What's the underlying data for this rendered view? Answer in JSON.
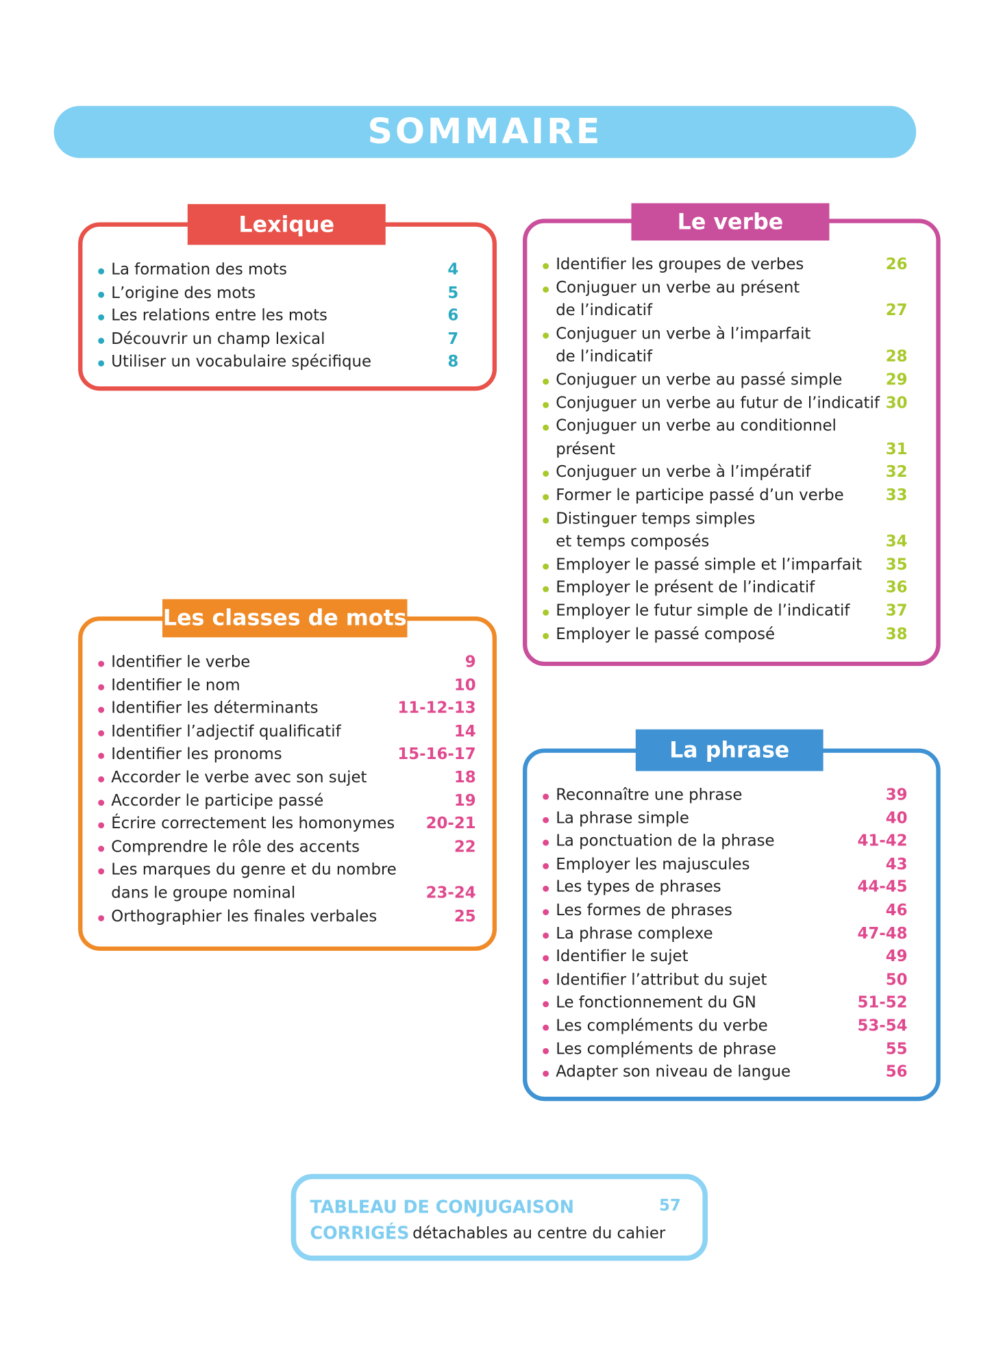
{
  "title": "SOMMAIRE",
  "sections": [
    {
      "title": "Lexique",
      "items": [
        {
          "lines": [
            "La formation des mots"
          ],
          "page": "4"
        },
        {
          "lines": [
            "L’origine des mots"
          ],
          "page": "5"
        },
        {
          "lines": [
            "Les relations entre les mots"
          ],
          "page": "6"
        },
        {
          "lines": [
            "Découvrir un champ lexical"
          ],
          "page": "7"
        },
        {
          "lines": [
            "Utiliser un vocabulaire spécifique"
          ],
          "page": "8"
        }
      ]
    },
    {
      "title": "Le verbe",
      "items": [
        {
          "lines": [
            "Identifier les groupes de verbes"
          ],
          "page": "26"
        },
        {
          "lines": [
            "Conjuguer un verbe au présent",
            "de l’indicatif"
          ],
          "page": "27"
        },
        {
          "lines": [
            "Conjuguer un verbe à l’imparfait",
            "de l’indicatif"
          ],
          "page": "28"
        },
        {
          "lines": [
            "Conjuguer un verbe au passé simple"
          ],
          "page": "29"
        },
        {
          "lines": [
            "Conjuguer un verbe au futur de l’indicatif"
          ],
          "page": "30"
        },
        {
          "lines": [
            "Conjuguer un verbe au conditionnel",
            "présent"
          ],
          "page": "31"
        },
        {
          "lines": [
            "Conjuguer un verbe à l’impératif"
          ],
          "page": "32"
        },
        {
          "lines": [
            "Former le participe passé d’un verbe"
          ],
          "page": "33"
        },
        {
          "lines": [
            "Distinguer temps simples",
            "et temps composés"
          ],
          "page": "34"
        },
        {
          "lines": [
            "Employer le passé simple et l’imparfait"
          ],
          "page": "35"
        },
        {
          "lines": [
            "Employer le présent de l’indicatif"
          ],
          "page": "36"
        },
        {
          "lines": [
            "Employer le futur simple de l’indicatif"
          ],
          "page": "37"
        },
        {
          "lines": [
            "Employer le passé composé"
          ],
          "page": "38"
        }
      ]
    },
    {
      "title": "Les classes de mots",
      "items": [
        {
          "lines": [
            "Identifier le verbe"
          ],
          "page": "9"
        },
        {
          "lines": [
            "Identifier le nom"
          ],
          "page": "10"
        },
        {
          "lines": [
            "Identifier les déterminants"
          ],
          "page": "11-12-13"
        },
        {
          "lines": [
            "Identifier l’adjectif qualificatif"
          ],
          "page": "14"
        },
        {
          "lines": [
            "Identifier les pronoms"
          ],
          "page": "15-16-17"
        },
        {
          "lines": [
            "Accorder le verbe avec son sujet"
          ],
          "page": "18"
        },
        {
          "lines": [
            "Accorder le participe passé"
          ],
          "page": "19"
        },
        {
          "lines": [
            "Écrire correctement les homonymes"
          ],
          "page": "20-21"
        },
        {
          "lines": [
            "Comprendre le rôle des accents"
          ],
          "page": "22"
        },
        {
          "lines": [
            "Les marques du genre et du nombre",
            "dans le groupe nominal"
          ],
          "page": "23-24"
        },
        {
          "lines": [
            "Orthographier les finales verbales"
          ],
          "page": "25"
        }
      ]
    },
    {
      "title": "La phrase",
      "items": [
        {
          "lines": [
            "Reconnaître une phrase"
          ],
          "page": "39"
        },
        {
          "lines": [
            "La phrase simple"
          ],
          "page": "40"
        },
        {
          "lines": [
            "La ponctuation de la phrase"
          ],
          "page": "41-42"
        },
        {
          "lines": [
            "Employer les majuscules"
          ],
          "page": "43"
        },
        {
          "lines": [
            "Les types de phrases"
          ],
          "page": "44-45"
        },
        {
          "lines": [
            "Les formes de phrases"
          ],
          "page": "46"
        },
        {
          "lines": [
            "La phrase complexe"
          ],
          "page": "47-48"
        },
        {
          "lines": [
            "Identifier le sujet"
          ],
          "page": "49"
        },
        {
          "lines": [
            "Identifier l’attribut du sujet"
          ],
          "page": "50"
        },
        {
          "lines": [
            "Le fonctionnement du GN"
          ],
          "page": "51-52"
        },
        {
          "lines": [
            "Les compléments du verbe"
          ],
          "page": "53-54"
        },
        {
          "lines": [
            "Les compléments de phrase"
          ],
          "page": "55"
        },
        {
          "lines": [
            "Adapter son niveau de langue"
          ],
          "page": "56"
        }
      ]
    }
  ],
  "footer": {
    "line1": "TABLEAU DE CONJUGAISON",
    "page": "57",
    "label": "CORRIGÉS",
    "note": "détachables au centre du cahier"
  }
}
